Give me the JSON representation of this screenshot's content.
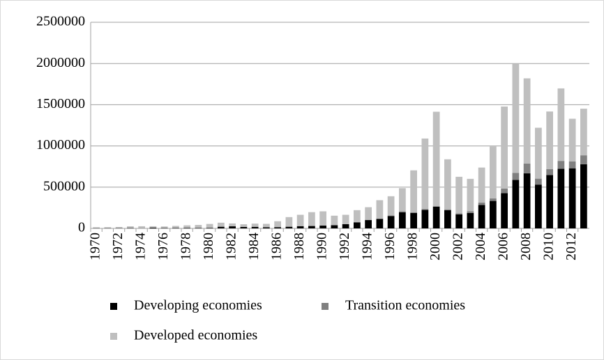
{
  "chart_data": {
    "type": "stacked_bar",
    "categories": [
      "1970",
      null,
      "1972",
      null,
      "1974",
      null,
      "1976",
      null,
      "1978",
      null,
      "1980",
      null,
      "1982",
      null,
      "1984",
      null,
      "1986",
      null,
      "1988",
      null,
      "1990",
      null,
      "1992",
      null,
      "1994",
      null,
      "1996",
      null,
      "1998",
      null,
      "2000",
      null,
      "2002",
      null,
      "2004",
      null,
      "2006",
      null,
      "2008",
      null,
      "2010",
      null,
      "2012",
      null
    ],
    "series": [
      {
        "name": "Developing economies",
        "color": "#000000",
        "values": [
          3000,
          3000,
          3000,
          4000,
          2000,
          10000,
          5000,
          6000,
          7000,
          6000,
          7000,
          20000,
          25000,
          18000,
          19000,
          14000,
          15000,
          20000,
          27000,
          29000,
          35000,
          39000,
          51000,
          74000,
          101000,
          115000,
          150000,
          196000,
          187000,
          225000,
          263000,
          221000,
          170000,
          187000,
          283000,
          333000,
          427000,
          589000,
          668000,
          531000,
          648000,
          724000,
          729000,
          778000
        ]
      },
      {
        "name": "Transition economies",
        "color": "#808080",
        "values": [
          0,
          0,
          0,
          0,
          0,
          0,
          0,
          0,
          0,
          0,
          0,
          0,
          0,
          0,
          0,
          0,
          0,
          0,
          0,
          0,
          0,
          0,
          0,
          0,
          0,
          4000,
          6000,
          12000,
          9000,
          10000,
          7000,
          10000,
          12000,
          20000,
          30000,
          31000,
          57000,
          85000,
          119000,
          72000,
          70000,
          94000,
          84000,
          108000
        ]
      },
      {
        "name": "Developed economies",
        "color": "#bfbfbf",
        "values": [
          10000,
          11000,
          14000,
          21000,
          24000,
          16000,
          18000,
          24000,
          30000,
          36000,
          47000,
          49000,
          35000,
          32000,
          39000,
          41000,
          72000,
          117000,
          138000,
          168000,
          172000,
          115000,
          114000,
          147000,
          156000,
          223000,
          234000,
          280000,
          508000,
          855000,
          1145000,
          607000,
          444000,
          394000,
          425000,
          630000,
          994000,
          1325000,
          1033000,
          618000,
          700000,
          880000,
          517000,
          566000
        ]
      }
    ],
    "ylim": [
      0,
      2500000
    ],
    "yticks": [
      0,
      500000,
      1000000,
      1500000,
      2000000,
      2500000
    ],
    "grid": true,
    "legend": "bottom"
  }
}
